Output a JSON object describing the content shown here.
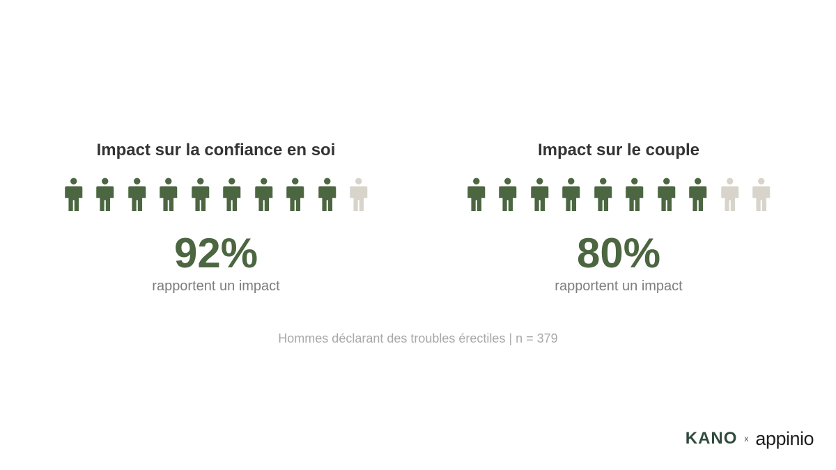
{
  "colors": {
    "filled": "#4b6640",
    "empty": "#d8d4cb"
  },
  "icons": {
    "person": "person-icon"
  },
  "chart_data": [
    {
      "type": "pictogram",
      "title": "Impact sur la confiance en soi",
      "value_label": "92%",
      "value": 92,
      "units_total": 10,
      "units_filled": 9,
      "caption": "rapportent un impact"
    },
    {
      "type": "pictogram",
      "title": "Impact sur le couple",
      "value_label": "80%",
      "value": 80,
      "units_total": 10,
      "units_filled": 8,
      "caption": "rapportent un impact"
    }
  ],
  "footnote": "Hommes déclarant des troubles érectiles | n = 379",
  "brand": {
    "kano": "KANO",
    "separator": "x",
    "appinio": "appinio"
  }
}
